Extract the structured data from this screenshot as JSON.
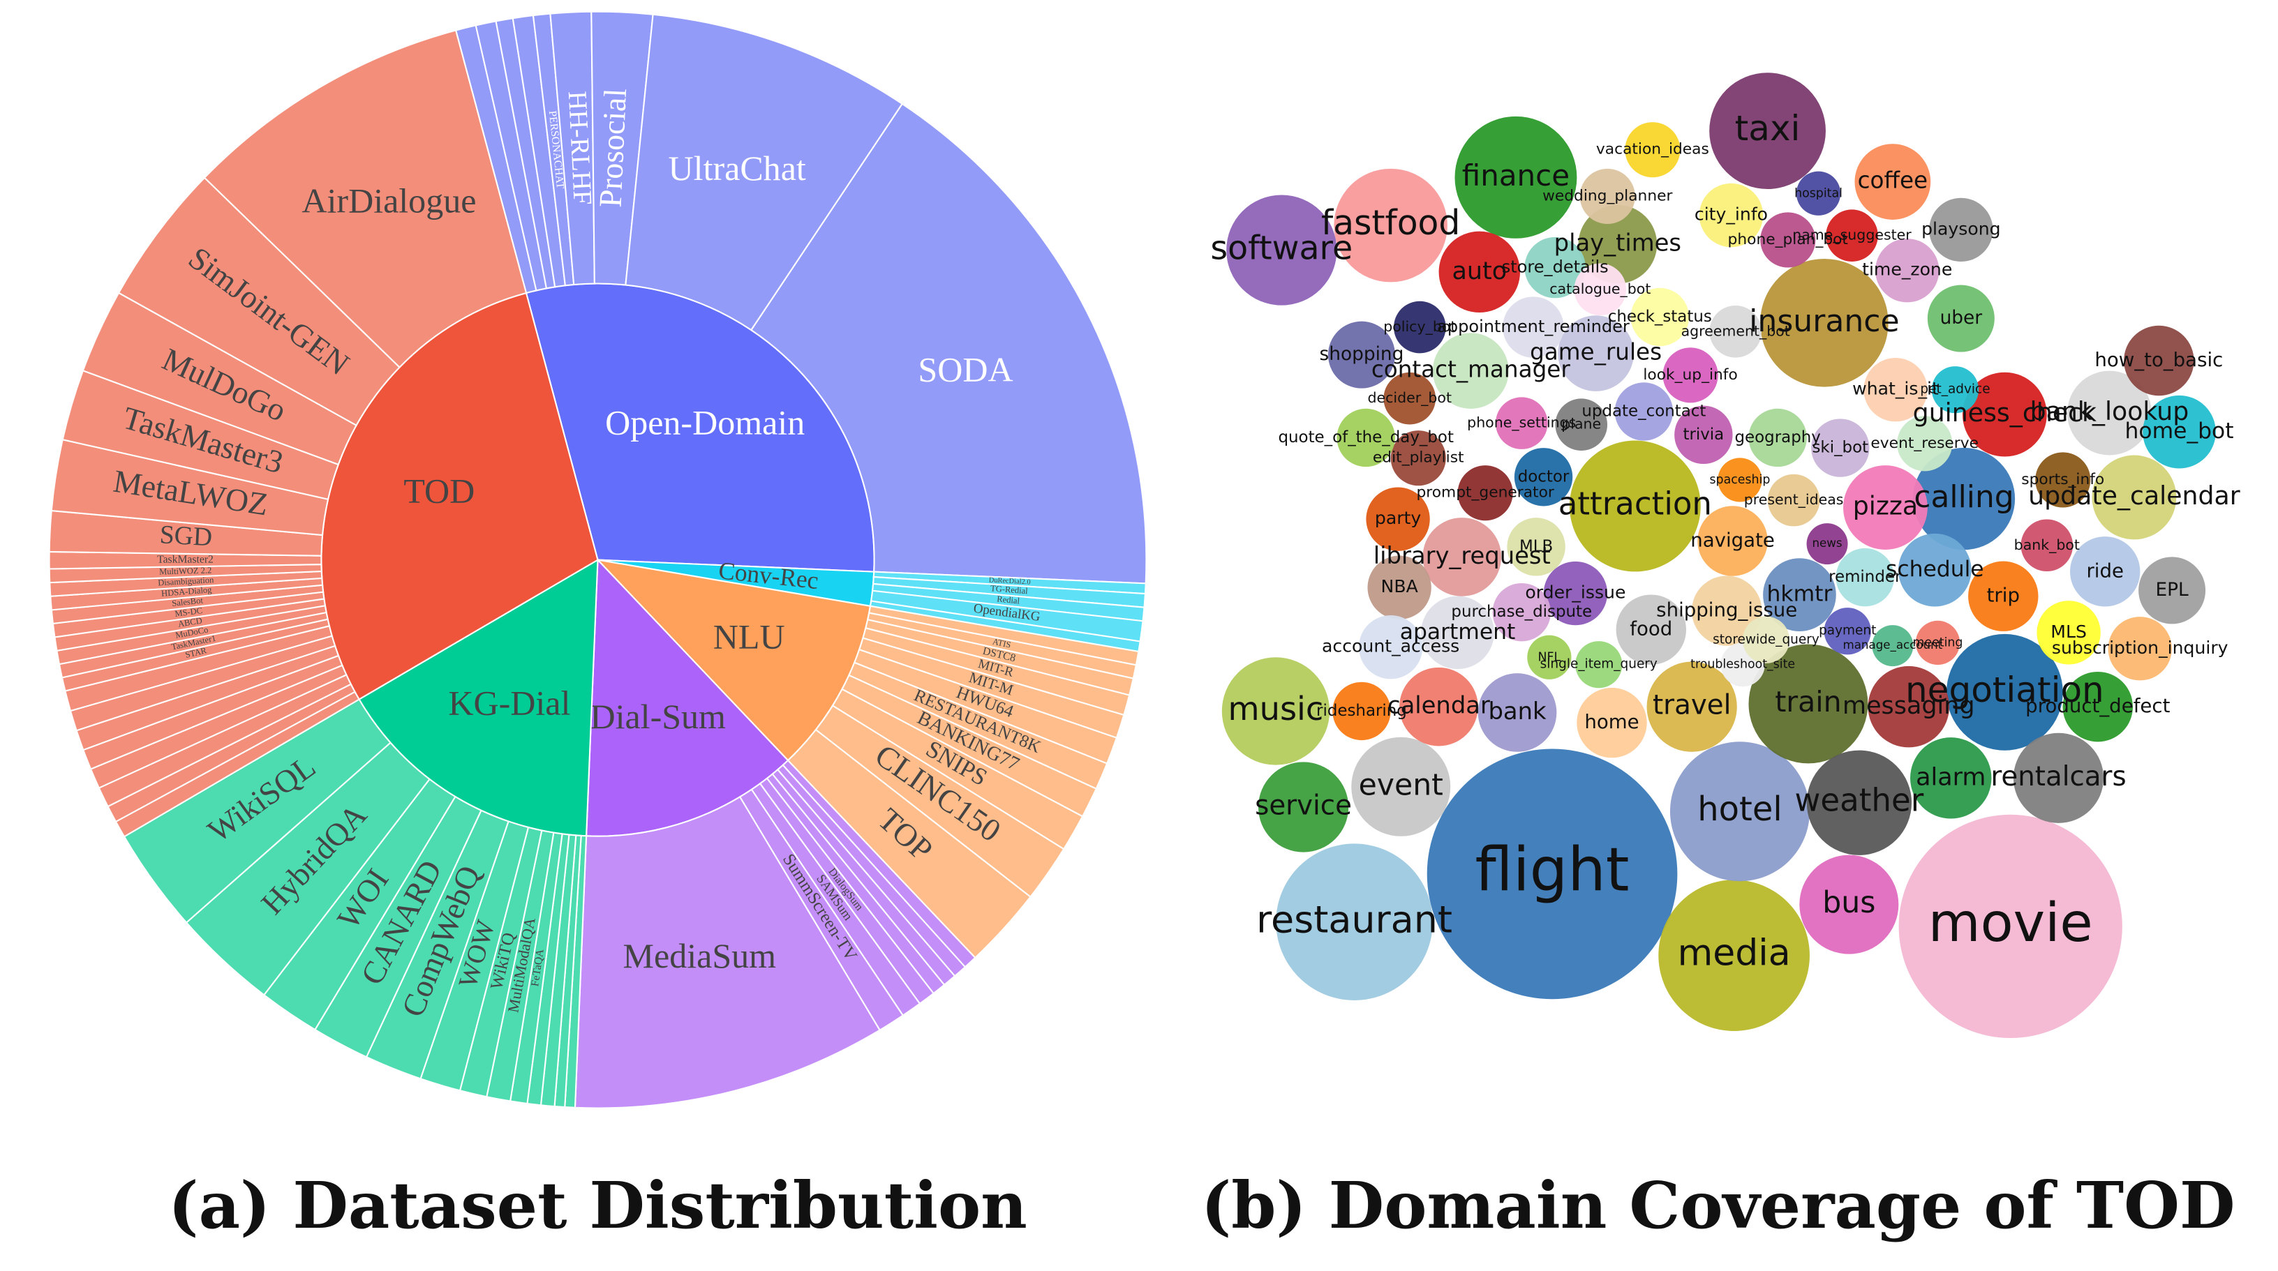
{
  "chart_data": [
    {
      "type": "sunburst",
      "title": "(a) Dataset Distribution",
      "categories": [
        "Open-Domain",
        "Conv-Rec",
        "NLU",
        "Dial-Sum",
        "KG-Dial",
        "TOD"
      ],
      "values": [
        30,
        2,
        10.3,
        12.8,
        16,
        29.4
      ],
      "colors": [
        "#636efa",
        "#19d3f3",
        "#ffa15a",
        "#ab63fa",
        "#00cc96",
        "#ef553b"
      ],
      "outer_colors": [
        "#939bf9",
        "#5ee0f6",
        "#ffbd8c",
        "#c48ef8",
        "#4ddbb0",
        "#f28e7a"
      ],
      "text_colors": [
        "#ffffff",
        "#444444",
        "#444444",
        "#444444",
        "#444444",
        "#444444"
      ],
      "outer_text_colors": [
        "#ffffff",
        "#444444",
        "#444444",
        "#444444",
        "#444444",
        "#444444"
      ],
      "children": [
        {
          "labels": [
            null,
            null,
            null,
            null,
            "PERSONACHAT",
            "HH-RLHF",
            "Prosocial",
            "UltraChat",
            "SODA"
          ],
          "values": [
            0.6,
            0.6,
            0.5,
            0.6,
            0.5,
            1.2,
            1.8,
            7.8,
            16.4
          ]
        },
        {
          "labels": [
            "DuRecDial2.0",
            "TG-Redial",
            "Redial",
            "OpendialKG",
            null
          ],
          "values": [
            0.3,
            0.4,
            0.4,
            0.6,
            0.3
          ]
        },
        {
          "labels": [
            null,
            "ATIS",
            "DSTC8",
            "MIT-R",
            "MIT-M",
            "HWU64",
            "RESTAURANT8K",
            "BANKING77",
            "SNIPS",
            "CLINC150",
            "TOP"
          ],
          "values": [
            0.4,
            0.4,
            0.5,
            0.6,
            0.7,
            0.8,
            0.8,
            0.9,
            1.1,
            1.7,
            2.4
          ]
        },
        {
          "labels": [
            null,
            null,
            null,
            null,
            "DialogSum",
            "SAMSum",
            "SummScreen-TV",
            "MediaSum"
          ],
          "values": [
            0.4,
            0.4,
            0.4,
            0.4,
            0.5,
            0.6,
            0.8,
            9.3
          ]
        },
        {
          "labels": [
            null,
            null,
            null,
            null,
            "FeTaQA",
            "MultiModalQA",
            "WikiTQ",
            "WOW",
            "CompWebQ",
            "CANARD",
            "WOI",
            "HybridQA",
            "WikiSQL"
          ],
          "values": [
            0.3,
            0.3,
            0.4,
            0.4,
            0.5,
            0.7,
            0.8,
            1.2,
            1.7,
            1.7,
            1.8,
            3.1,
            3.1
          ]
        },
        {
          "labels": [
            null,
            null,
            null,
            null,
            null,
            null,
            null,
            null,
            "STAR",
            "TaskMaster1",
            "MuDoCo",
            "ABCD",
            "MS-DC",
            "SalesBot",
            "HDSA-Dialog",
            "Disambiguation",
            "MultiWOZ 2.2",
            "TaskMaster2",
            "SGD",
            "MetaLWOZ",
            "TaskMaster3",
            "MulDoGo",
            "SimJoint-GEN",
            "AirDialogue"
          ],
          "values": [
            0.5,
            0.5,
            0.6,
            0.6,
            0.6,
            0.6,
            0.6,
            0.6,
            0.4,
            0.4,
            0.4,
            0.4,
            0.4,
            0.4,
            0.4,
            0.4,
            0.4,
            0.5,
            1.2,
            2.1,
            2.1,
            2.5,
            4.2,
            8.6
          ]
        }
      ]
    },
    {
      "type": "bubble",
      "title": "(b) Domain Coverage of TOD",
      "categories": [
        "flight",
        "movie",
        "restaurant",
        "media",
        "hotel",
        "taxi",
        "finance",
        "insurance",
        "attraction",
        "train",
        "negotiation",
        "weather",
        "fastfood",
        "software",
        "music",
        "bus",
        "calling",
        "event",
        "service",
        "travel",
        "rentalcars",
        "messaging",
        "alarm",
        "guiness_check",
        "bank_lookup",
        "pizza",
        "update_calendar",
        "calendar",
        "bank",
        "home",
        "product_defect",
        "coffee",
        "auto",
        "play_times",
        "game_rules",
        "contact_manager",
        "navigate",
        "hkmtr",
        "food",
        "shipping_issue",
        "apartment",
        "library_request",
        "schedule",
        "trip",
        "uber",
        "playsong",
        "time_zone",
        "what_is_it",
        "ride",
        "EPL",
        "MLS",
        "subscription_inquiry",
        "home_bot",
        "how_to_basic",
        "party",
        "NBA",
        "MLB",
        "order_issue",
        "doctor",
        "prompt_generator",
        "edit_playlist",
        "quote_of_the_day_bot",
        "decider_bot",
        "shopping",
        "policy_bot",
        "appointment_reminder",
        "store_details",
        "wedding_planner",
        "vacation_ideas",
        "city_info",
        "hospital",
        "phone_plan_bot",
        "name_suggester",
        "catalogue_bot",
        "check_status",
        "agreement_bot",
        "look_up_info",
        "update_contact",
        "plane",
        "phone_settings",
        "trivia",
        "geography",
        "ski_bot",
        "event_reserve",
        "pet_advice",
        "spaceship",
        "present_ideas",
        "news",
        "reminder",
        "bank_bot",
        "sports_info",
        "payment",
        "meeting",
        "manage_account",
        "troubleshoot_site",
        "NFL",
        "single_item_query",
        "purchase_dispute",
        "account_access",
        "ridesharing",
        "storewide_query"
      ],
      "values": [
        74,
        59,
        29,
        27,
        23,
        16,
        17.6,
        19.4,
        20.3,
        16.8,
        16,
        13,
        15.2,
        14.4,
        13.7,
        11.6,
        12.3,
        11.6,
        9.6,
        9.6,
        9.6,
        7.8,
        7.8,
        8.4,
        8.4,
        8.4,
        8.4,
        7.3,
        7.3,
        5.8,
        5.8,
        6.8,
        7.8,
        7.3,
        6.8,
        6.8,
        5.8,
        6.3,
        5.8,
        5.8,
        6.3,
        7.3,
        6.3,
        5.8,
        5.3,
        4.8,
        4.8,
        4.8,
        5.8,
        5.3,
        4.8,
        4.8,
        6.3,
        5.8,
        4.8,
        4.8,
        4,
        4.8,
        4,
        3.6,
        3.6,
        4,
        3.2,
        5.3,
        3.2,
        4.4,
        4.4,
        3.6,
        3.6,
        4.8,
        2.3,
        3.6,
        3.2,
        3.2,
        4,
        3.2,
        3.6,
        4,
        3.2,
        3.2,
        4,
        4,
        4,
        3.6,
        2.6,
        2.3,
        3.2,
        2,
        4,
        3.2,
        3.6,
        2.6,
        2.3,
        2,
        2.3,
        2.3,
        2.6,
        4,
        4.8,
        4,
        2.6
      ],
      "colors": [
        "#3a7ab8",
        "#f4b6d2",
        "#9dc9e0",
        "#b8b82a",
        "#8c9dcb",
        "#7b3b6e",
        "#2b9a2b",
        "#b8963a",
        "#b8b820",
        "#5f6f2e",
        "#1f6aa5",
        "#595959",
        "#f99a9a",
        "#8f63b8",
        "#b3cc5c",
        "#e06bbf",
        "#3a7ab8",
        "#c7c7c7",
        "#3c9e3c",
        "#d9b54a",
        "#7f7f7f",
        "#a33a3a",
        "#2b9a4b",
        "#d62020",
        "#d9d9d9",
        "#f27ab8",
        "#d4d47a",
        "#f07b6b",
        "#9e9ace",
        "#ffcc99",
        "#2b9a2b",
        "#fa8c5a",
        "#d62020",
        "#8a9a4a",
        "#c4c4e0",
        "#c7e6c0",
        "#fcb05a",
        "#6b8fc0",
        "#c7c7c7",
        "#f2d2a0",
        "#dedee8",
        "#e39a9a",
        "#6ea9d6",
        "#fa7a14",
        "#6fbf6f",
        "#999999",
        "#d9a0d0",
        "#fdd0b0",
        "#b3c8e8",
        "#a0a0a0",
        "#ffff33",
        "#fcb870",
        "#23becf",
        "#8c4a44",
        "#e05a14",
        "#c09a8a",
        "#dce0a8",
        "#8c5ab8",
        "#1f6aa5",
        "#8c2b2b",
        "#9a4a3a",
        "#a0d05a",
        "#a0522d",
        "#6c6caa",
        "#2b2b6a",
        "#dcdcec",
        "#8dd4c4",
        "#dcc4a0",
        "#f9d62b",
        "#fbf07a",
        "#4a4aa0",
        "#b8508a",
        "#d62020",
        "#ffe0f0",
        "#fdfda0",
        "#d9d9d9",
        "#d860c0",
        "#a0a0e0",
        "#7f7f7f",
        "#e070b8",
        "#c060b0",
        "#a8d898",
        "#c8b4d8",
        "#c8e8c8",
        "#23becf",
        "#fa8c14",
        "#e8c890",
        "#8c3a8c",
        "#a8e0e0",
        "#d0506a",
        "#8a5a1a",
        "#6060c0",
        "#f07a6a",
        "#55b88c",
        "#eeeeee",
        "#a0d05a",
        "#98d878",
        "#d8a8d8",
        "#d8e0f0",
        "#fa7a14",
        "#e8e8c0"
      ]
    }
  ]
}
